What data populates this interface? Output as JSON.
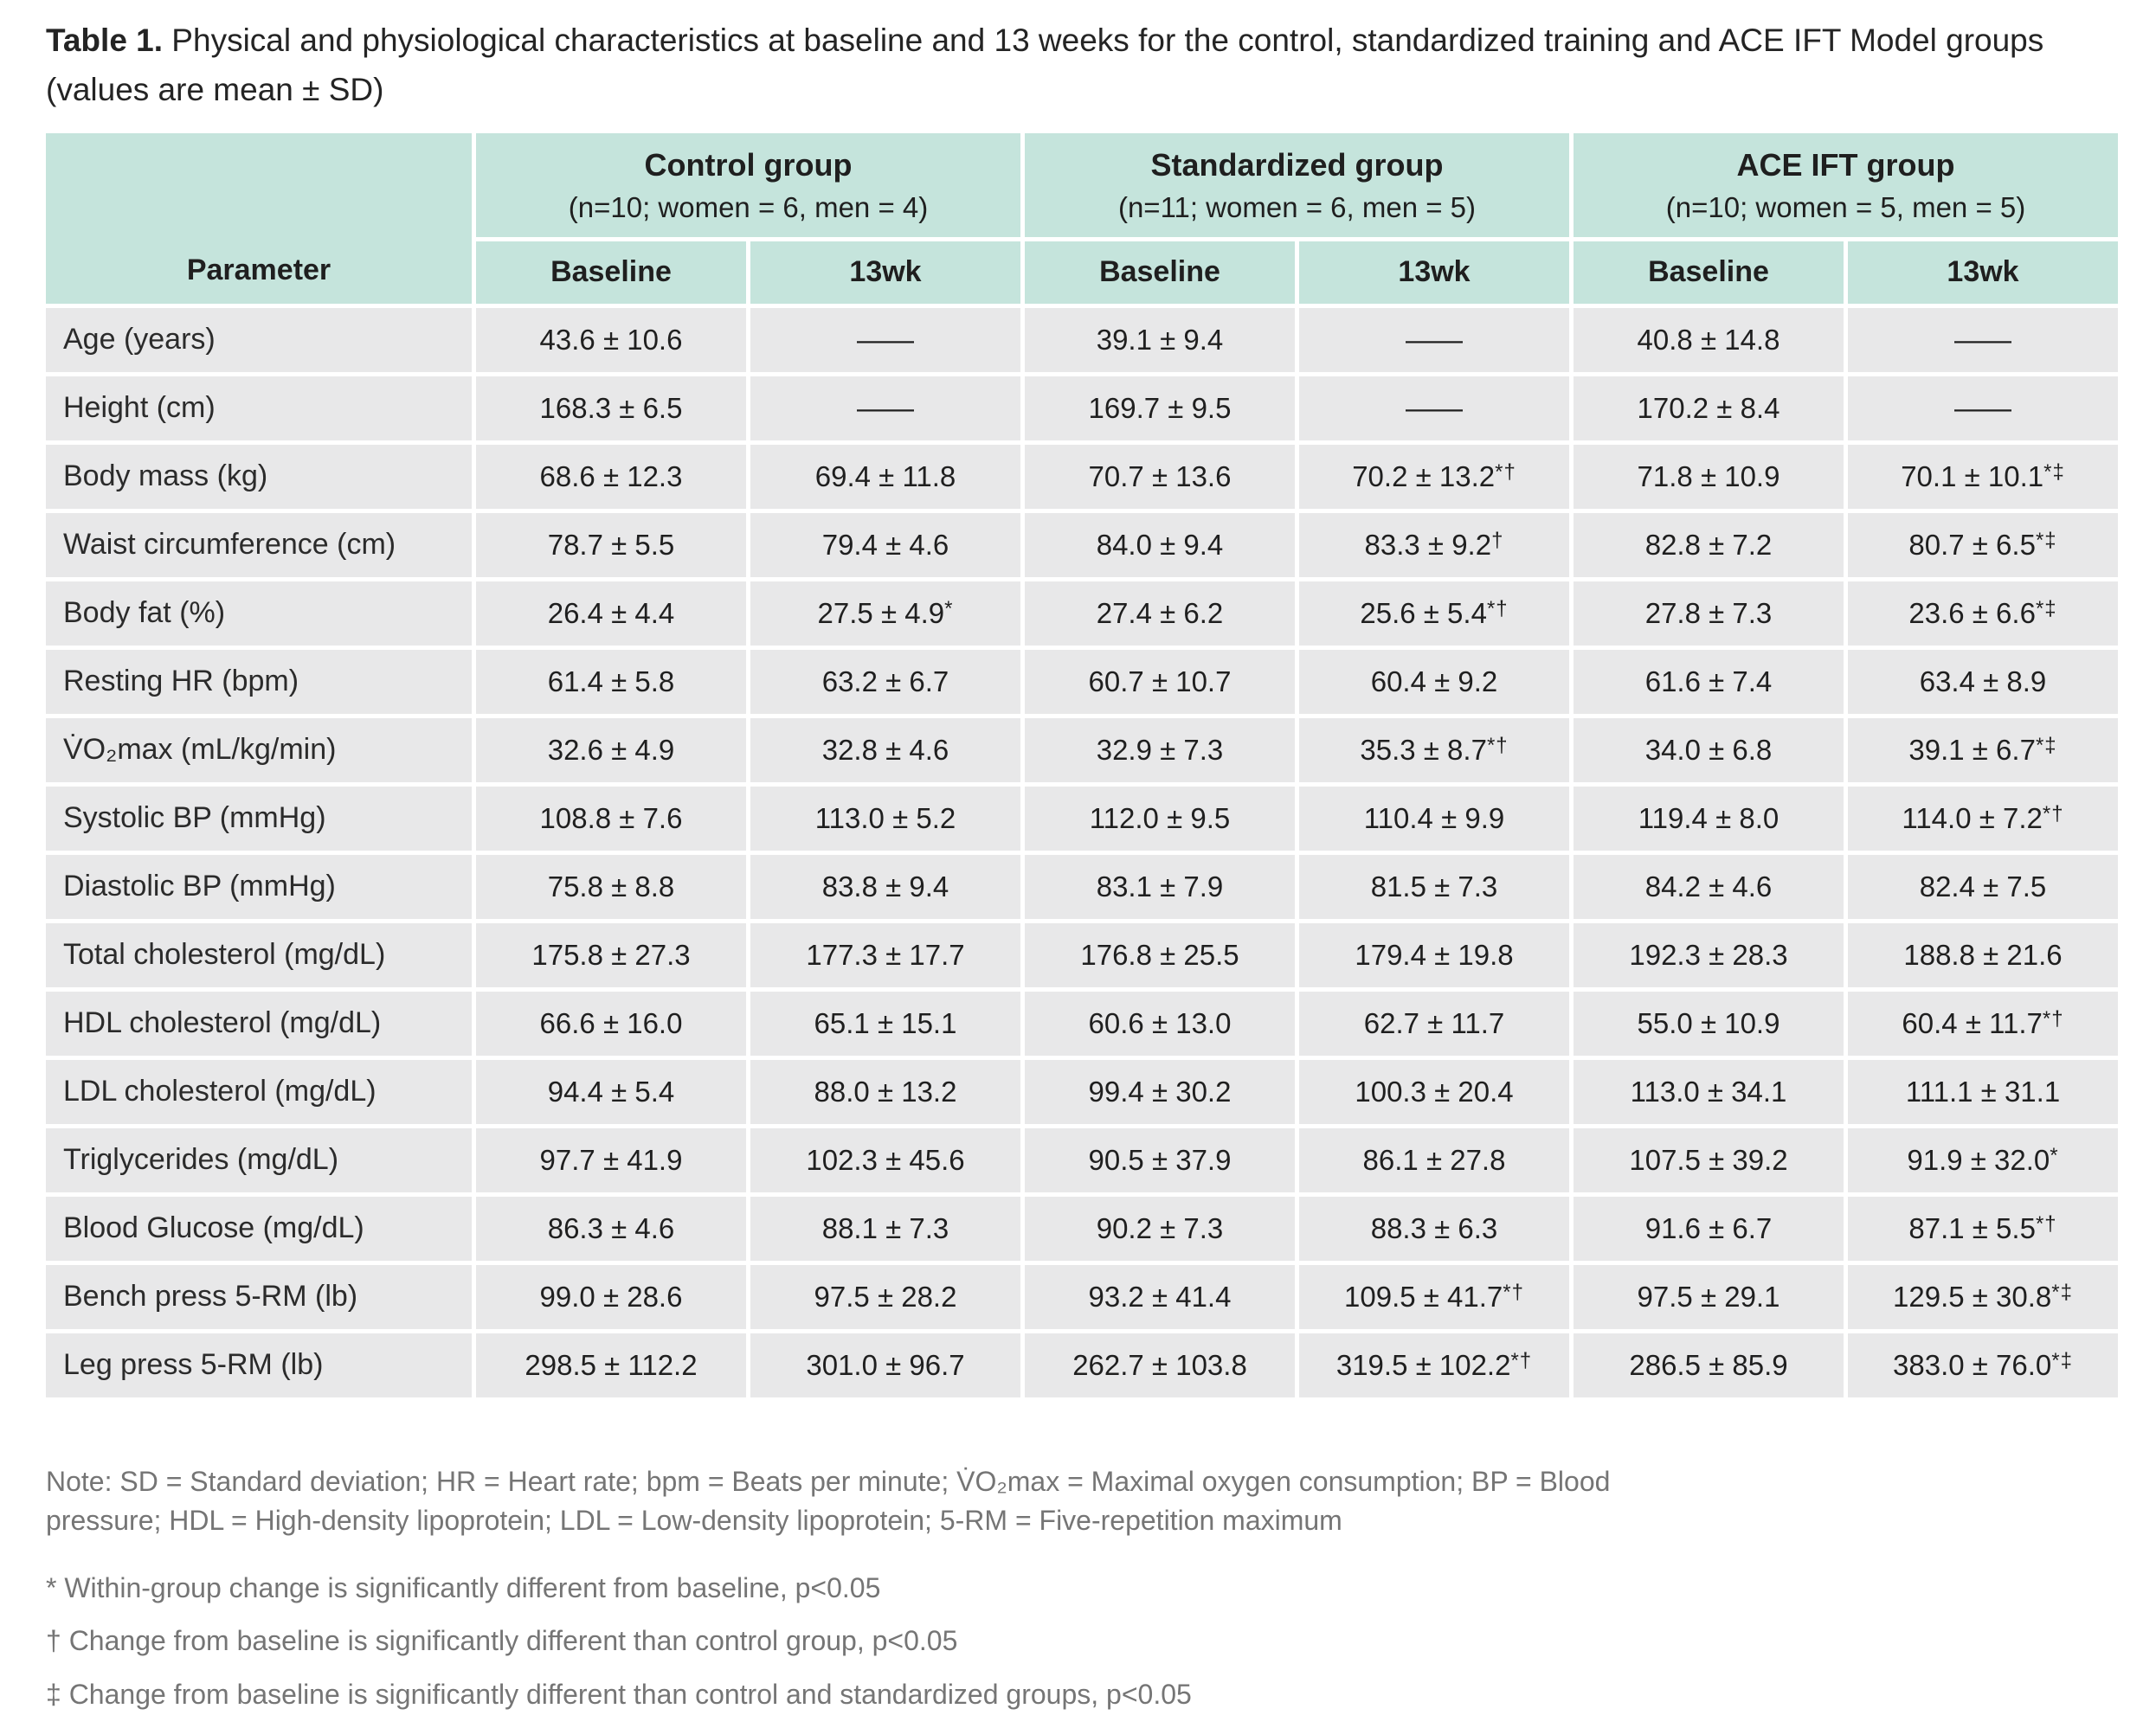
{
  "colors": {
    "header_bg": "#c5e4dc",
    "row_bg": "#e8e8e9",
    "text": "#1f1f1f",
    "note_text": "#757575",
    "page_bg": "#ffffff"
  },
  "title": {
    "prefix": "Table 1.",
    "text": " Physical and physiological characteristics at baseline and 13 weeks for the control, standardized training and ACE IFT Model groups (values are mean ± SD)"
  },
  "table": {
    "parameter_header": "Parameter",
    "groups": [
      {
        "name": "Control group",
        "detail": "(n=10; women = 6, men = 4)"
      },
      {
        "name": "Standardized group",
        "detail": "(n=11; women = 6, men = 5)"
      },
      {
        "name": "ACE IFT group",
        "detail": "(n=10; women = 5, men = 5)"
      }
    ],
    "subheaders": [
      "Baseline",
      "13wk",
      "Baseline",
      "13wk",
      "Baseline",
      "13wk"
    ],
    "rows": [
      {
        "parameter": "Age (years)",
        "values": [
          {
            "v": "43.6 ± 10.6"
          },
          {
            "v": "——"
          },
          {
            "v": "39.1 ± 9.4"
          },
          {
            "v": "——"
          },
          {
            "v": "40.8 ± 14.8"
          },
          {
            "v": "——"
          }
        ]
      },
      {
        "parameter": "Height (cm)",
        "values": [
          {
            "v": "168.3 ± 6.5"
          },
          {
            "v": "——"
          },
          {
            "v": "169.7 ± 9.5"
          },
          {
            "v": "——"
          },
          {
            "v": "170.2 ± 8.4"
          },
          {
            "v": "——"
          }
        ]
      },
      {
        "parameter": "Body mass (kg)",
        "values": [
          {
            "v": "68.6 ± 12.3"
          },
          {
            "v": "69.4 ± 11.8"
          },
          {
            "v": "70.7 ± 13.6"
          },
          {
            "v": "70.2 ± 13.2",
            "m": "*†"
          },
          {
            "v": "71.8 ± 10.9"
          },
          {
            "v": "70.1 ± 10.1",
            "m": "*‡"
          }
        ]
      },
      {
        "parameter": "Waist circumference (cm)",
        "values": [
          {
            "v": "78.7 ± 5.5"
          },
          {
            "v": "79.4 ± 4.6"
          },
          {
            "v": "84.0 ± 9.4"
          },
          {
            "v": "83.3 ± 9.2",
            "m": "†"
          },
          {
            "v": "82.8 ± 7.2"
          },
          {
            "v": "80.7 ± 6.5",
            "m": "*‡"
          }
        ]
      },
      {
        "parameter": "Body fat (%)",
        "values": [
          {
            "v": "26.4 ± 4.4"
          },
          {
            "v": "27.5 ± 4.9",
            "m": "*"
          },
          {
            "v": "27.4 ± 6.2"
          },
          {
            "v": "25.6 ± 5.4",
            "m": "*†"
          },
          {
            "v": "27.8 ± 7.3"
          },
          {
            "v": "23.6 ± 6.6",
            "m": "*‡"
          }
        ]
      },
      {
        "parameter": "Resting HR (bpm)",
        "values": [
          {
            "v": "61.4 ± 5.8"
          },
          {
            "v": "63.2 ± 6.7"
          },
          {
            "v": "60.7 ± 10.7"
          },
          {
            "v": "60.4 ± 9.2"
          },
          {
            "v": "61.6 ± 7.4"
          },
          {
            "v": "63.4 ± 8.9"
          }
        ]
      },
      {
        "parameter": "V̇O₂max (mL/kg/min)",
        "values": [
          {
            "v": "32.6 ± 4.9"
          },
          {
            "v": "32.8 ± 4.6"
          },
          {
            "v": "32.9 ± 7.3"
          },
          {
            "v": "35.3 ± 8.7",
            "m": "*†"
          },
          {
            "v": "34.0 ± 6.8"
          },
          {
            "v": "39.1 ± 6.7",
            "m": "*‡"
          }
        ]
      },
      {
        "parameter": "Systolic BP (mmHg)",
        "values": [
          {
            "v": "108.8 ± 7.6"
          },
          {
            "v": "113.0 ± 5.2"
          },
          {
            "v": "112.0 ± 9.5"
          },
          {
            "v": "110.4 ± 9.9"
          },
          {
            "v": "119.4 ± 8.0"
          },
          {
            "v": "114.0 ± 7.2",
            "m": "*†"
          }
        ]
      },
      {
        "parameter": "Diastolic BP (mmHg)",
        "values": [
          {
            "v": "75.8 ± 8.8"
          },
          {
            "v": "83.8 ± 9.4"
          },
          {
            "v": "83.1 ± 7.9"
          },
          {
            "v": "81.5 ± 7.3"
          },
          {
            "v": "84.2 ± 4.6"
          },
          {
            "v": "82.4 ± 7.5"
          }
        ]
      },
      {
        "parameter": "Total cholesterol (mg/dL)",
        "values": [
          {
            "v": "175.8 ± 27.3"
          },
          {
            "v": "177.3 ± 17.7"
          },
          {
            "v": "176.8 ± 25.5"
          },
          {
            "v": "179.4 ± 19.8"
          },
          {
            "v": "192.3 ± 28.3"
          },
          {
            "v": "188.8 ± 21.6"
          }
        ]
      },
      {
        "parameter": "HDL cholesterol (mg/dL)",
        "values": [
          {
            "v": "66.6 ± 16.0"
          },
          {
            "v": "65.1 ± 15.1"
          },
          {
            "v": "60.6 ± 13.0"
          },
          {
            "v": "62.7 ± 11.7"
          },
          {
            "v": "55.0 ± 10.9"
          },
          {
            "v": "60.4 ± 11.7",
            "m": "*†"
          }
        ]
      },
      {
        "parameter": "LDL cholesterol (mg/dL)",
        "values": [
          {
            "v": "94.4 ± 5.4"
          },
          {
            "v": "88.0 ± 13.2"
          },
          {
            "v": "99.4 ± 30.2"
          },
          {
            "v": "100.3 ± 20.4"
          },
          {
            "v": "113.0 ± 34.1"
          },
          {
            "v": "111.1 ± 31.1"
          }
        ]
      },
      {
        "parameter": "Triglycerides (mg/dL)",
        "values": [
          {
            "v": "97.7 ± 41.9"
          },
          {
            "v": "102.3 ± 45.6"
          },
          {
            "v": "90.5 ± 37.9"
          },
          {
            "v": "86.1 ± 27.8"
          },
          {
            "v": "107.5 ± 39.2"
          },
          {
            "v": "91.9 ± 32.0",
            "m": "*"
          }
        ]
      },
      {
        "parameter": "Blood Glucose (mg/dL)",
        "values": [
          {
            "v": "86.3 ± 4.6"
          },
          {
            "v": "88.1 ± 7.3"
          },
          {
            "v": "90.2 ± 7.3"
          },
          {
            "v": "88.3 ± 6.3"
          },
          {
            "v": "91.6 ± 6.7"
          },
          {
            "v": "87.1 ± 5.5",
            "m": "*†"
          }
        ]
      },
      {
        "parameter": "Bench press 5-RM (lb)",
        "values": [
          {
            "v": "99.0 ± 28.6"
          },
          {
            "v": "97.5 ± 28.2"
          },
          {
            "v": "93.2 ± 41.4"
          },
          {
            "v": "109.5 ± 41.7",
            "m": "*†"
          },
          {
            "v": "97.5 ± 29.1"
          },
          {
            "v": "129.5 ± 30.8",
            "m": "*‡"
          }
        ]
      },
      {
        "parameter": "Leg press 5-RM (lb)",
        "values": [
          {
            "v": "298.5 ± 112.2"
          },
          {
            "v": "301.0 ± 96.7"
          },
          {
            "v": "262.7 ± 103.8"
          },
          {
            "v": "319.5 ± 102.2",
            "m": "*†"
          },
          {
            "v": "286.5 ± 85.9"
          },
          {
            "v": "383.0 ± 76.0",
            "m": "*‡"
          }
        ]
      }
    ]
  },
  "notes": {
    "abbreviations": "Note: SD = Standard deviation; HR = Heart rate; bpm = Beats per minute; V̇O₂max = Maximal oxygen consumption; BP = Blood pressure; HDL = High-density lipoprotein; LDL = Low-density lipoprotein; 5-RM = Five-repetition maximum",
    "footnotes": [
      "* Within-group change is significantly different from baseline, p<0.05",
      "† Change from baseline is significantly different than control group, p<0.05",
      "‡ Change from baseline is significantly different than control and standardized groups, p<0.05"
    ]
  }
}
